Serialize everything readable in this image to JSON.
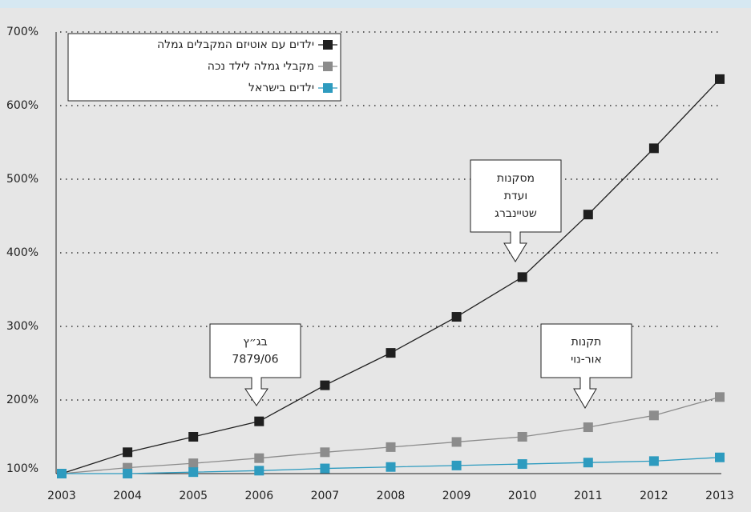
{
  "chart_data": {
    "type": "line",
    "categories": [
      "2003",
      "2004",
      "2005",
      "2006",
      "2007",
      "2008",
      "2009",
      "2010",
      "2011",
      "2012",
      "2013"
    ],
    "series": [
      {
        "name": "ילדים עם אוטיזם המקבלים גמלה",
        "color": "#1f1f1f",
        "values": [
          100,
          129,
          150,
          171,
          220,
          264,
          313,
          367,
          452,
          542,
          636
        ]
      },
      {
        "name": "מקבלי גמלה לילד נכה",
        "color": "#8c8c8c",
        "values": [
          100,
          108,
          114,
          121,
          129,
          136,
          143,
          150,
          163,
          179,
          204
        ]
      },
      {
        "name": "ילדים בישראל",
        "color": "#2e9bbf",
        "values": [
          100,
          100,
          102,
          104,
          107,
          109,
          111,
          113,
          115,
          117,
          122
        ]
      }
    ],
    "ylim": [
      100,
      700
    ],
    "yticks": [
      {
        "value": 100,
        "label": "100%"
      },
      {
        "value": 200,
        "label": "200%"
      },
      {
        "value": 300,
        "label": "300%"
      },
      {
        "value": 400,
        "label": "400%"
      },
      {
        "value": 500,
        "label": "500%"
      },
      {
        "value": 600,
        "label": "600%"
      },
      {
        "value": 700,
        "label": "700%"
      }
    ],
    "grid": true,
    "annotations": [
      {
        "lines": [
          "בג״ץ",
          "7879/06"
        ]
      },
      {
        "lines": [
          "מסקנות",
          "ועדת",
          "שטיינברג"
        ]
      },
      {
        "lines": [
          "תקנות",
          "אור-נוי"
        ]
      }
    ]
  }
}
